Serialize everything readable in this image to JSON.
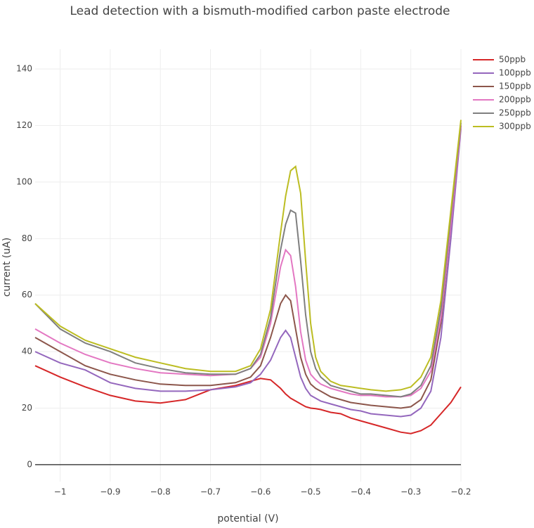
{
  "chart_data": {
    "type": "line",
    "title": "Lead detection with a bismuth-modified carbon paste electrode",
    "x_label": "potential (V)",
    "y_label": "current (uA)",
    "x": [
      -1.05,
      -1.0,
      -0.95,
      -0.9,
      -0.85,
      -0.8,
      -0.75,
      -0.7,
      -0.65,
      -0.62,
      -0.6,
      -0.58,
      -0.56,
      -0.55,
      -0.54,
      -0.53,
      -0.52,
      -0.51,
      -0.5,
      -0.49,
      -0.48,
      -0.46,
      -0.44,
      -0.42,
      -0.4,
      -0.38,
      -0.35,
      -0.32,
      -0.3,
      -0.28,
      -0.26,
      -0.24,
      -0.22,
      -0.2
    ],
    "series": [
      {
        "name": "50ppb",
        "color": "#d62728",
        "values": [
          35,
          31,
          27.5,
          24.5,
          22.5,
          21.8,
          23,
          26.5,
          28,
          29.5,
          30.5,
          30,
          27,
          25,
          23.5,
          22.5,
          21.5,
          20.5,
          20,
          19.8,
          19.5,
          18.5,
          18,
          16.5,
          15.5,
          14.5,
          13,
          11.5,
          11,
          12,
          14,
          18,
          22,
          27.5
        ]
      },
      {
        "name": "100ppb",
        "color": "#9467bd",
        "values": [
          40,
          36,
          33.5,
          29,
          27,
          26,
          26,
          26.5,
          27.5,
          29,
          32,
          37,
          45,
          47.5,
          45,
          38,
          31,
          27,
          24.5,
          23.5,
          22.5,
          21.5,
          20.5,
          19.5,
          19,
          18,
          17.5,
          17,
          17.5,
          20,
          26,
          45,
          80,
          119
        ]
      },
      {
        "name": "150ppb",
        "color": "#8c564b",
        "values": [
          45,
          40,
          35,
          32,
          30,
          28.5,
          28,
          28,
          29,
          31,
          35,
          45,
          57,
          60,
          58,
          48,
          38,
          32,
          28.5,
          27,
          26,
          24,
          23,
          22,
          21.5,
          21,
          20.5,
          20,
          20.5,
          23,
          30,
          50,
          85,
          120
        ]
      },
      {
        "name": "200ppb",
        "color": "#e377c2",
        "values": [
          48,
          43,
          39,
          36,
          34,
          32.5,
          32,
          31.5,
          32,
          34,
          38,
          50,
          70,
          76,
          74,
          63,
          47,
          37,
          32,
          30,
          28.5,
          27,
          26,
          25,
          24.5,
          24.5,
          24,
          24,
          24.5,
          27,
          33,
          52,
          85,
          120
        ]
      },
      {
        "name": "250ppb",
        "color": "#7f7f7f",
        "values": [
          57,
          48,
          43,
          40,
          36,
          34,
          32.5,
          32,
          32,
          34,
          39,
          52,
          76,
          85,
          90,
          89,
          72,
          53,
          40,
          34,
          31,
          28,
          27,
          26,
          25,
          25,
          24.5,
          24,
          25,
          28,
          35,
          55,
          88,
          121
        ]
      },
      {
        "name": "300ppb",
        "color": "#bcbd22",
        "values": [
          57,
          49,
          44,
          41,
          38,
          36,
          34,
          33,
          33,
          35,
          41,
          55,
          82,
          95,
          104,
          105.5,
          96,
          72,
          50,
          38,
          33,
          29.5,
          28,
          27.5,
          27,
          26.5,
          26,
          26.5,
          27.5,
          31,
          38,
          58,
          90,
          122
        ]
      }
    ],
    "xlim": [
      -1.05,
      -0.2
    ],
    "ylim": [
      -6,
      147
    ],
    "xticks": [
      {
        "value": -1,
        "label": "−1"
      },
      {
        "value": -0.9,
        "label": "−0.9"
      },
      {
        "value": -0.8,
        "label": "−0.8"
      },
      {
        "value": -0.7,
        "label": "−0.7"
      },
      {
        "value": -0.6,
        "label": "−0.6"
      },
      {
        "value": -0.5,
        "label": "−0.5"
      },
      {
        "value": -0.4,
        "label": "−0.4"
      },
      {
        "value": -0.3,
        "label": "−0.3"
      },
      {
        "value": -0.2,
        "label": "−0.2"
      }
    ],
    "yticks": [
      0,
      20,
      40,
      60,
      80,
      100,
      120,
      140
    ],
    "grid": true,
    "legend": "top-right"
  }
}
